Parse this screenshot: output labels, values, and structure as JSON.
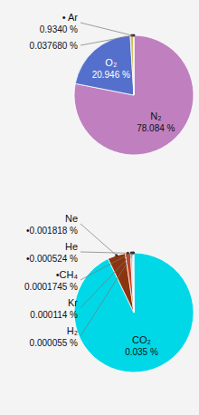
{
  "chart_data": [
    {
      "type": "pie",
      "categories": [
        "N₂",
        "O₂",
        "• Ar",
        null
      ],
      "values": [
        78.084,
        20.946,
        0.934,
        0.03768
      ],
      "value_labels": [
        "78.084 %",
        "20.946 %",
        "0.9340 %",
        "0.037680 %"
      ],
      "colors": [
        "#c080c0",
        "#5570cc",
        "#d4c060",
        "#ffffff"
      ]
    },
    {
      "type": "pie",
      "categories": [
        "CO₂",
        "Ne",
        "He",
        "•CH₄",
        "Kr",
        "H₂"
      ],
      "values": [
        0.035,
        0.001818,
        0.000524,
        0.0001745,
        0.000114,
        5.5e-05
      ],
      "value_labels": [
        "0.035 %",
        "•0.001818 %",
        "•0.000524 %",
        "0.0001745 %",
        "0.000114 %",
        "0.000055 %"
      ],
      "colors": [
        "#00d8e8",
        "#8b3510",
        "#c84020",
        "#e090a0",
        "#7090d0",
        "#c0d8f0"
      ]
    }
  ]
}
